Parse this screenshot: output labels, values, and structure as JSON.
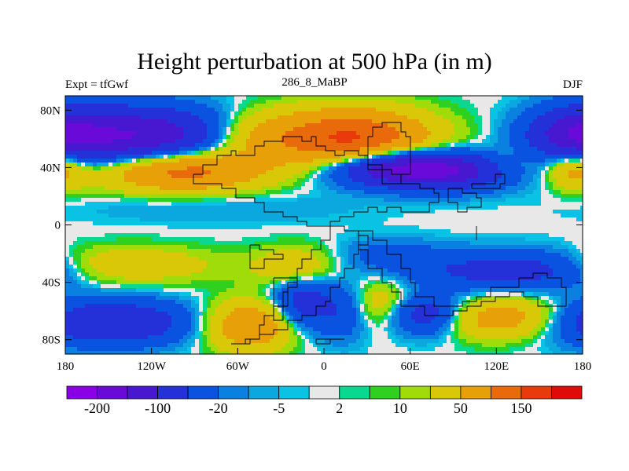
{
  "title": "Height perturbation at 500 hPa (in m)",
  "subtitle_left": "Expt = tfGwf",
  "subtitle_center": "286_8_MaBP",
  "subtitle_right": "DJF",
  "map": {
    "lon_range": [
      -180,
      180
    ],
    "lat_range": [
      -90,
      90
    ],
    "x_ticks": [
      {
        "value": -180,
        "label": "180"
      },
      {
        "value": -120,
        "label": "120W"
      },
      {
        "value": -60,
        "label": "60W"
      },
      {
        "value": 0,
        "label": "0"
      },
      {
        "value": 60,
        "label": "60E"
      },
      {
        "value": 120,
        "label": "120E"
      },
      {
        "value": 180,
        "label": "180"
      }
    ],
    "y_ticks": [
      {
        "value": 80,
        "label": "80N"
      },
      {
        "value": 40,
        "label": "40N"
      },
      {
        "value": 0,
        "label": "0"
      },
      {
        "value": -40,
        "label": "40S"
      },
      {
        "value": -80,
        "label": "80S"
      }
    ]
  },
  "colorbar": {
    "colors": [
      "#8a00e6",
      "#6a0ad8",
      "#4818d0",
      "#2430d8",
      "#0a52e0",
      "#0a80e0",
      "#0aa8de",
      "#0ac2e4",
      "#e8e8e8",
      "#08d890",
      "#30d020",
      "#a0dc0a",
      "#d8c808",
      "#e8a008",
      "#e86a0a",
      "#e83a0a",
      "#e00a0a"
    ],
    "labels": [
      {
        "boundary": 1,
        "text": "-200"
      },
      {
        "boundary": 3,
        "text": "-100"
      },
      {
        "boundary": 5,
        "text": "-20"
      },
      {
        "boundary": 7,
        "text": "-5"
      },
      {
        "boundary": 9,
        "text": "2"
      },
      {
        "boundary": 11,
        "text": "10"
      },
      {
        "boundary": 13,
        "text": "50"
      },
      {
        "boundary": 15,
        "text": "150"
      }
    ]
  },
  "field": {
    "features": [
      {
        "lon": -130,
        "lat": 62,
        "slon": 45,
        "slat": 14,
        "amp": -150
      },
      {
        "lon": 175,
        "lat": 62,
        "slon": 22,
        "slat": 14,
        "amp": -100
      },
      {
        "lon": -100,
        "lat": 38,
        "slon": 40,
        "slat": 10,
        "amp": 130
      },
      {
        "lon": 18,
        "lat": 60,
        "slon": 38,
        "slat": 14,
        "amp": 160
      },
      {
        "lon": 45,
        "lat": 42,
        "slon": 30,
        "slat": 8,
        "amp": -70
      },
      {
        "lon": 80,
        "lat": 38,
        "slon": 45,
        "slat": 9,
        "amp": -160
      },
      {
        "lon": 130,
        "lat": 40,
        "slon": 22,
        "slat": 9,
        "amp": 60
      },
      {
        "lon": 175,
        "lat": 40,
        "slon": 14,
        "slat": 10,
        "amp": 90
      },
      {
        "lon": -50,
        "lat": 62,
        "slon": 26,
        "slat": 12,
        "amp": 50
      },
      {
        "lon": -75,
        "lat": 12,
        "slon": 70,
        "slat": 8,
        "amp": -12
      },
      {
        "lon": -140,
        "lat": -28,
        "slon": 45,
        "slat": 9,
        "amp": 45
      },
      {
        "lon": -150,
        "lat": -68,
        "slon": 40,
        "slat": 11,
        "amp": -100
      },
      {
        "lon": -50,
        "lat": -70,
        "slon": 22,
        "slat": 12,
        "amp": 100
      },
      {
        "lon": -15,
        "lat": -55,
        "slon": 16,
        "slat": 14,
        "amp": -80
      },
      {
        "lon": 15,
        "lat": -60,
        "slon": 12,
        "slat": 14,
        "amp": -45
      },
      {
        "lon": 40,
        "lat": -55,
        "slon": 20,
        "slat": 12,
        "amp": 45
      },
      {
        "lon": 70,
        "lat": -62,
        "slon": 18,
        "slat": 10,
        "amp": -90
      },
      {
        "lon": 125,
        "lat": -65,
        "slon": 30,
        "slat": 10,
        "amp": 80
      },
      {
        "lon": 115,
        "lat": -32,
        "slon": 45,
        "slat": 10,
        "amp": -60
      },
      {
        "lon": 45,
        "lat": -20,
        "slon": 25,
        "slat": 8,
        "amp": -25
      },
      {
        "lon": 160,
        "lat": -30,
        "slon": 25,
        "slat": 9,
        "amp": -30
      },
      {
        "lon": -20,
        "lat": -30,
        "slon": 20,
        "slat": 10,
        "amp": 50
      }
    ]
  }
}
